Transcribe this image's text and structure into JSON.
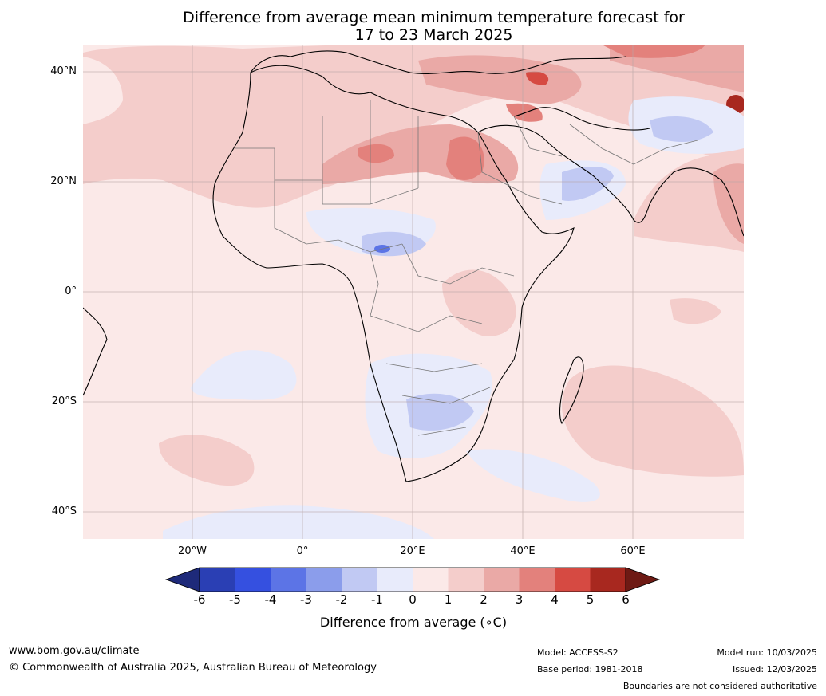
{
  "title_line1": "Difference from average mean minimum temperature forecast for",
  "title_line2": "17 to 23 March 2025",
  "lat_labels": [
    "40°N",
    "20°N",
    "0°",
    "20°S",
    "40°S"
  ],
  "lon_labels": [
    "20°W",
    "0°",
    "20°E",
    "40°E",
    "60°E"
  ],
  "colorbar": {
    "ticks": [
      "-6",
      "-5",
      "-4",
      "-3",
      "-2",
      "-1",
      "0",
      "1",
      "2",
      "3",
      "4",
      "5",
      "6"
    ],
    "label": "Difference from average (∘C)",
    "colors": [
      "#1e2a7a",
      "#2a3fb4",
      "#3550e0",
      "#5c74e6",
      "#8b9deb",
      "#c1c9f3",
      "#e8ebfb",
      "#fbe9e8",
      "#f4cdcb",
      "#eaa9a6",
      "#e3817c",
      "#d64a42",
      "#a8281f",
      "#6e1a14"
    ]
  },
  "footer": {
    "website": "www.bom.gov.au/climate",
    "copyright": "© Commonwealth of Australia 2025, Australian Bureau of Meteorology",
    "model": "Model: ACCESS-S2",
    "base_period": "Base period: 1981-2018",
    "model_run": "Model run: 10/03/2025",
    "issued": "Issued: 12/03/2025",
    "disclaimer": "Boundaries are not considered authoritative"
  }
}
